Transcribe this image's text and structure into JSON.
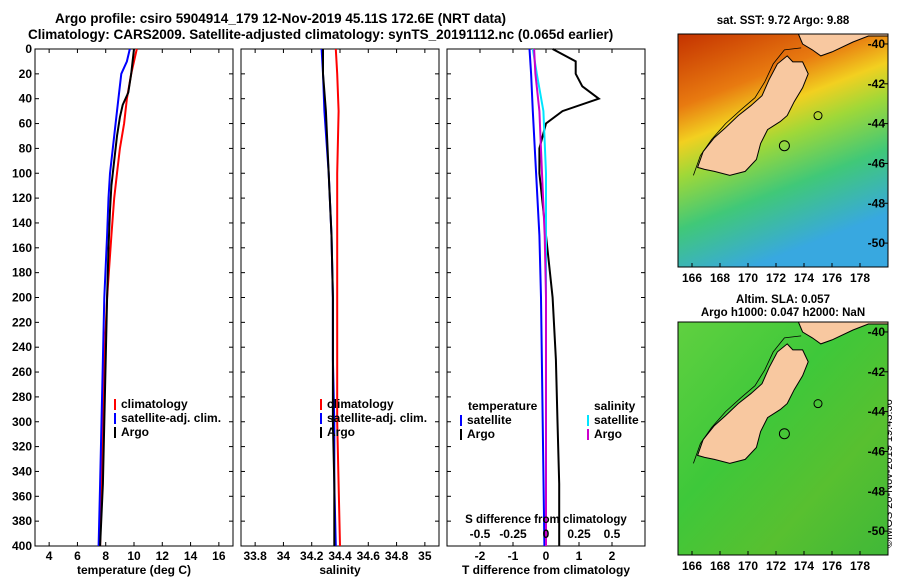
{
  "titles": {
    "line1": "Argo profile: csiro 5904914_179 12-Nov-2019 45.11S 172.6E (NRT data)",
    "line2": "Climatology: CARS2009. Satellite-adjusted climatology: synTS_20191112.nc (0.065d earlier)"
  },
  "maps": {
    "sst_title": "sat. SST: 9.72 Argo: 9.88",
    "sla_title1": "Altim. SLA: 0.057",
    "sla_title2": "Argo h1000: 0.047 h2000: NaN",
    "xticks": [
      "166",
      "168",
      "170",
      "172",
      "174",
      "176",
      "178"
    ],
    "sst_yticks": [
      "-40",
      "-42",
      "-44",
      "-46",
      "-48",
      "-50"
    ],
    "sla_yticks": [
      "-40",
      "-42",
      "-44",
      "-46",
      "-48",
      "-50"
    ],
    "land_color": "#f8c8a0"
  },
  "watermark": "©IMOS 20-Nov-2019 19:43:36",
  "colors": {
    "climatology": "#ff0000",
    "satellite": "#0000ff",
    "argo": "#000000",
    "sal_satellite": "#00e5ff",
    "sal_argo": "#cc00cc"
  },
  "chart_data": [
    {
      "type": "line",
      "xlabel": "temperature (deg C)",
      "ylabel": "",
      "xlim": [
        3,
        17
      ],
      "ylim": [
        400,
        0
      ],
      "xticks": [
        4,
        6,
        8,
        10,
        12,
        14,
        16
      ],
      "yticks": [
        0,
        20,
        40,
        60,
        80,
        100,
        120,
        140,
        160,
        180,
        200,
        220,
        240,
        260,
        280,
        300,
        320,
        340,
        360,
        380,
        400
      ],
      "legend": [
        "climatology",
        "satellite-adj. clim.",
        "Argo"
      ],
      "series": [
        {
          "name": "climatology",
          "color": "#ff0000",
          "depth": [
            0,
            10,
            20,
            40,
            60,
            80,
            100,
            120,
            150,
            200,
            250,
            300,
            350,
            400
          ],
          "values": [
            10.2,
            10.0,
            9.8,
            9.5,
            9.3,
            9.0,
            8.8,
            8.6,
            8.4,
            8.1,
            7.9,
            7.8,
            7.7,
            7.6
          ]
        },
        {
          "name": "satellite-adj. clim.",
          "color": "#0000ff",
          "depth": [
            0,
            10,
            20,
            40,
            60,
            80,
            100,
            120,
            150,
            200,
            250,
            300,
            350,
            400
          ],
          "values": [
            9.7,
            9.5,
            9.1,
            8.9,
            8.7,
            8.5,
            8.3,
            8.2,
            8.1,
            7.9,
            7.8,
            7.7,
            7.6,
            7.5
          ]
        },
        {
          "name": "Argo",
          "color": "#000000",
          "depth": [
            0,
            10,
            20,
            35,
            45,
            55,
            70,
            90,
            110,
            130,
            160,
            200,
            250,
            300,
            350,
            400
          ],
          "values": [
            10.0,
            9.9,
            9.8,
            9.6,
            9.2,
            9.0,
            8.8,
            8.6,
            8.4,
            8.3,
            8.2,
            8.1,
            8.0,
            7.9,
            7.8,
            7.6
          ]
        }
      ]
    },
    {
      "type": "line",
      "xlabel": "salinity",
      "ylabel": "",
      "xlim": [
        33.7,
        35.1
      ],
      "ylim": [
        400,
        0
      ],
      "xticks": [
        33.8,
        34,
        34.2,
        34.4,
        34.6,
        34.8,
        35
      ],
      "xticklabels": [
        "33.8",
        "34",
        "34.2",
        "34.4",
        "34.6",
        "34.8",
        "35"
      ],
      "legend": [
        "climatology",
        "satellite-adj. clim.",
        "Argo"
      ],
      "series": [
        {
          "name": "climatology",
          "color": "#ff0000",
          "depth": [
            0,
            20,
            50,
            100,
            150,
            200,
            250,
            300,
            350,
            400
          ],
          "values": [
            34.37,
            34.38,
            34.39,
            34.38,
            34.38,
            34.38,
            34.38,
            34.38,
            34.39,
            34.4
          ]
        },
        {
          "name": "satellite-adj. clim.",
          "color": "#0000ff",
          "depth": [
            0,
            20,
            50,
            100,
            150,
            200,
            250,
            300,
            350,
            400
          ],
          "values": [
            34.27,
            34.28,
            34.29,
            34.32,
            34.34,
            34.35,
            34.35,
            34.36,
            34.36,
            34.37
          ]
        },
        {
          "name": "Argo",
          "color": "#000000",
          "depth": [
            0,
            20,
            50,
            100,
            150,
            200,
            250,
            300,
            350,
            400
          ],
          "values": [
            34.28,
            34.28,
            34.3,
            34.32,
            34.34,
            34.35,
            34.35,
            34.35,
            34.36,
            34.36
          ]
        }
      ]
    },
    {
      "type": "line",
      "xlabel": "T difference from climatology",
      "secondary_xlabel": "S difference from climatology",
      "ylabel": "",
      "xlim": [
        -3,
        3
      ],
      "ylim": [
        400,
        0
      ],
      "xticks": [
        -2,
        -1,
        0,
        1,
        2
      ],
      "secondary_xticks": [
        -0.5,
        -0.25,
        0,
        0.25,
        0.5
      ],
      "secondary_xticklabels": [
        "-0.5",
        "-0.25",
        "0",
        "0.25",
        "0.5"
      ],
      "legend_temperature": {
        "title": "temperature",
        "items": [
          "satellite",
          "Argo"
        ]
      },
      "legend_salinity": {
        "title": "salinity",
        "items": [
          "satellite",
          "Argo"
        ]
      },
      "series": [
        {
          "name": "T satellite",
          "color": "#0000ff",
          "depth": [
            0,
            20,
            50,
            100,
            150,
            200,
            300,
            400
          ],
          "values": [
            -0.5,
            -0.45,
            -0.4,
            -0.3,
            -0.2,
            -0.15,
            -0.1,
            -0.05
          ]
        },
        {
          "name": "T Argo",
          "color": "#000000",
          "depth": [
            0,
            10,
            20,
            30,
            40,
            50,
            60,
            80,
            100,
            150,
            200,
            250,
            300,
            350,
            400
          ],
          "values": [
            0.2,
            0.9,
            0.9,
            1.1,
            1.6,
            0.5,
            0.0,
            -0.2,
            -0.2,
            0.0,
            0.2,
            0.3,
            0.35,
            0.4,
            0.4
          ]
        },
        {
          "name": "S satellite",
          "color": "#00e5ff",
          "depth": [
            0,
            20,
            50,
            100,
            150,
            200,
            250,
            300,
            400
          ],
          "values": [
            -0.1,
            -0.07,
            -0.02,
            0.0,
            0.0,
            0.0,
            0.0,
            0.0,
            0.0
          ]
        },
        {
          "name": "S Argo",
          "color": "#cc00cc",
          "depth": [
            0,
            20,
            50,
            100,
            150,
            200,
            250,
            300,
            400
          ],
          "values": [
            -0.09,
            -0.08,
            -0.05,
            -0.03,
            -0.01,
            0.0,
            0.0,
            0.0,
            0.0
          ]
        }
      ]
    }
  ]
}
